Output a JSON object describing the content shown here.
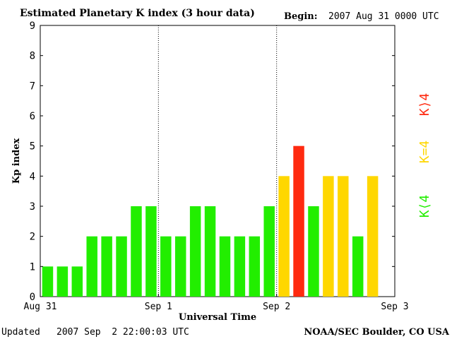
{
  "header": {
    "title": "Estimated Planetary K index (3 hour data)",
    "begin_label": "Begin:",
    "begin_value": "2007 Aug 31 0000 UTC"
  },
  "footer": {
    "updated_label": "Updated",
    "updated_value": "2007 Sep  2 22:00:03 UTC",
    "credit": "NOAA/SEC Boulder, CO USA"
  },
  "legend": {
    "low": "K⟨4",
    "equal": "K=4",
    "high": "K⟩4"
  },
  "colors": {
    "low": "#22ee00",
    "equal": "#ffd700",
    "high": "#ff2a10",
    "axis": "#000000",
    "divider": "#000000"
  },
  "chart_data": {
    "type": "bar",
    "xlabel": "Universal Time",
    "ylabel": "Kp index",
    "ylim": [
      0,
      9
    ],
    "yticks": [
      0,
      1,
      2,
      3,
      4,
      5,
      6,
      7,
      8,
      9
    ],
    "xticks": [
      "Aug 31",
      "Sep 1",
      "Sep 2",
      "Sep 3"
    ],
    "slots_per_day": 8,
    "days": 3,
    "day_dividers": "dotted",
    "values": [
      1,
      1,
      1,
      2,
      2,
      2,
      3,
      3,
      2,
      2,
      3,
      3,
      2,
      2,
      2,
      3,
      4,
      5,
      3,
      4,
      4,
      2,
      4
    ]
  }
}
